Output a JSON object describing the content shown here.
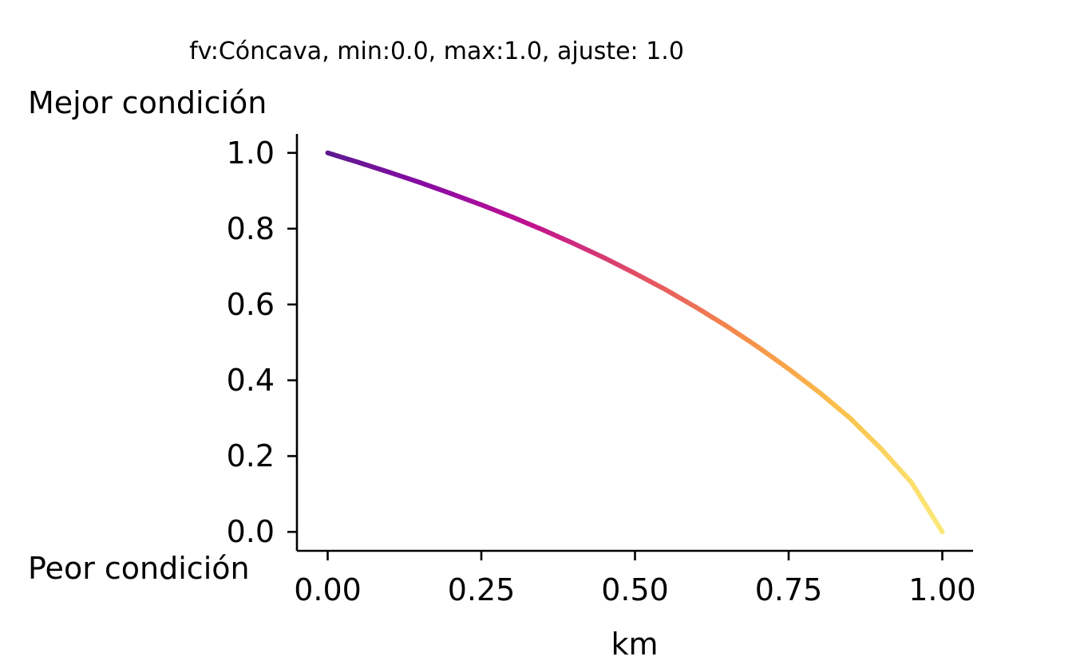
{
  "chart_data": {
    "type": "line",
    "title": "fv:Cóncava, min:0.0, max:1.0, ajuste: 1.0",
    "xlabel": "km",
    "ylabel": "",
    "annotations": {
      "top": "Mejor condición",
      "bottom": "Peor condición"
    },
    "xlim": [
      -0.05,
      1.05
    ],
    "ylim": [
      -0.05,
      1.05
    ],
    "xticks": [
      0.0,
      0.25,
      0.5,
      0.75,
      1.0
    ],
    "xtick_labels": [
      "0.00",
      "0.25",
      "0.50",
      "0.75",
      "1.00"
    ],
    "yticks": [
      0.0,
      0.2,
      0.4,
      0.6,
      0.8,
      1.0
    ],
    "ytick_labels": [
      "0.0",
      "0.2",
      "0.4",
      "0.6",
      "0.8",
      "1.0"
    ],
    "grid": false,
    "legend": "none",
    "colormap": "plasma",
    "line_colors": [
      "#5c1a8f",
      "#8a0ca5",
      "#c1128f",
      "#e04c66",
      "#f58a4a",
      "#fbc04a",
      "#fbe97a"
    ],
    "series": [
      {
        "x": [
          0.0,
          0.05,
          0.1,
          0.15,
          0.2,
          0.25,
          0.3,
          0.35,
          0.4,
          0.45,
          0.5,
          0.55,
          0.6,
          0.65,
          0.7,
          0.75,
          0.8,
          0.85,
          0.9,
          0.95,
          1.0
        ],
        "values": [
          1.0,
          0.975,
          0.949,
          0.922,
          0.893,
          0.863,
          0.831,
          0.797,
          0.761,
          0.723,
          0.682,
          0.639,
          0.592,
          0.542,
          0.488,
          0.43,
          0.368,
          0.3,
          0.22,
          0.13,
          0.0
        ]
      }
    ]
  }
}
